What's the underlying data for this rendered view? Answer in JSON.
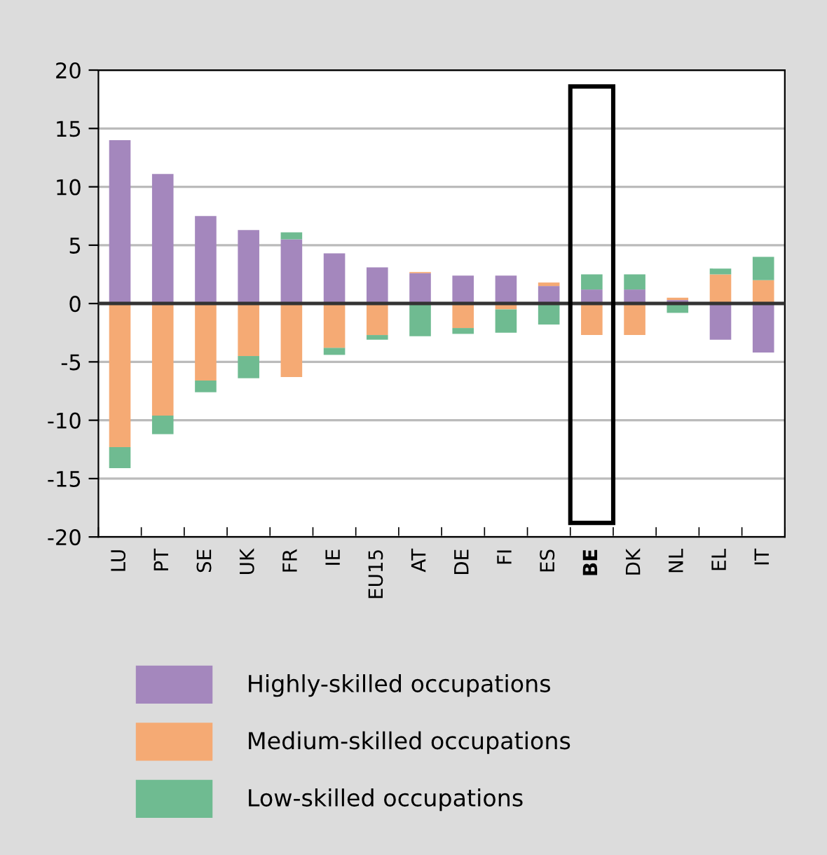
{
  "chart_data": {
    "type": "bar",
    "stacked": true,
    "categories": [
      "LU",
      "PT",
      "SE",
      "UK",
      "FR",
      "IE",
      "EU15",
      "AT",
      "DE",
      "FI",
      "ES",
      "BE",
      "DK",
      "NL",
      "EL",
      "IT"
    ],
    "series": [
      {
        "name": "Highly-skilled occupations",
        "color": "#a487bd",
        "values": [
          14.0,
          11.1,
          7.5,
          6.3,
          5.5,
          4.3,
          3.1,
          2.6,
          2.4,
          2.4,
          1.5,
          1.2,
          1.2,
          0.3,
          -3.1,
          -4.2
        ]
      },
      {
        "name": "Medium-skilled occupations",
        "color": "#f5aa74",
        "values": [
          -12.3,
          -9.6,
          -6.6,
          -4.5,
          -6.3,
          -3.8,
          -2.7,
          0.1,
          -2.1,
          -0.5,
          0.3,
          -2.7,
          -2.7,
          0.2,
          2.5,
          2.0
        ]
      },
      {
        "name": "Low-skilled occupations",
        "color": "#6fbb91",
        "values": [
          -1.8,
          -1.6,
          -1.0,
          -1.9,
          0.6,
          -0.6,
          -0.4,
          -2.8,
          -0.5,
          -2.0,
          -1.8,
          1.3,
          1.3,
          -0.8,
          0.5,
          2.0
        ]
      }
    ],
    "ylim": [
      -20,
      20
    ],
    "yticks": [
      -20,
      -15,
      -10,
      -5,
      0,
      5,
      10,
      15,
      20
    ],
    "grid": "y",
    "legend": "bottom"
  }
}
